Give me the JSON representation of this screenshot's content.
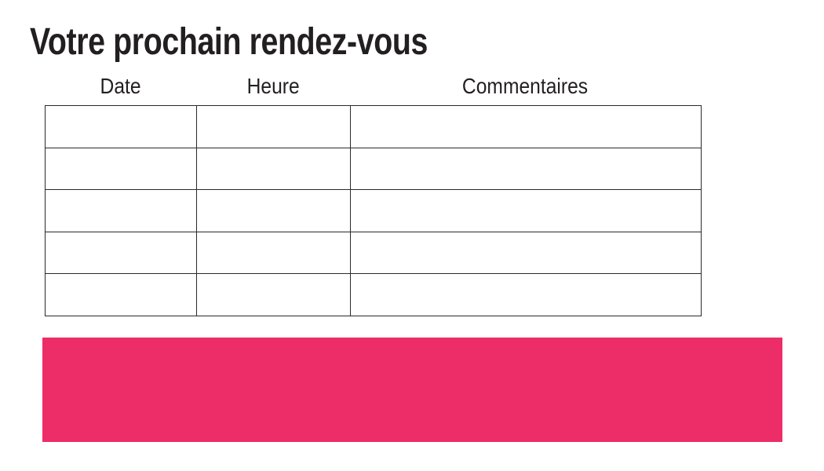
{
  "page": {
    "title": "Votre prochain rendez-vous"
  },
  "appointments_table": {
    "headers": [
      "Date",
      "Heure",
      "Commentaires"
    ],
    "rows": [
      [
        "",
        "",
        ""
      ],
      [
        "",
        "",
        ""
      ],
      [
        "",
        "",
        ""
      ],
      [
        "",
        "",
        ""
      ],
      [
        "",
        "",
        ""
      ]
    ]
  },
  "colors": {
    "accent_pink": "#ed2d67",
    "table_border": "#2a2a2a",
    "text": "#231f20"
  }
}
